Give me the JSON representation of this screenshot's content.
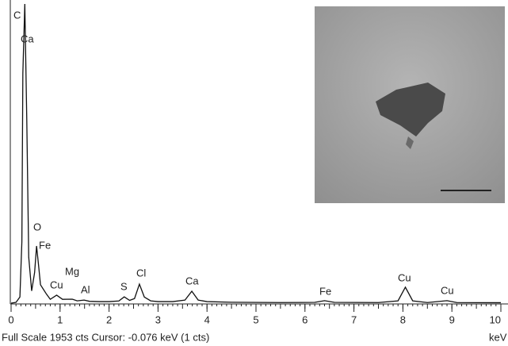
{
  "chart_data": {
    "type": "line",
    "x": [
      0,
      0.1,
      0.18,
      0.22,
      0.24,
      0.28,
      0.32,
      0.36,
      0.42,
      0.48,
      0.52,
      0.56,
      0.6,
      0.66,
      0.72,
      0.8,
      0.93,
      1.05,
      1.25,
      1.35,
      1.49,
      1.6,
      1.8,
      2.0,
      2.2,
      2.31,
      2.42,
      2.52,
      2.62,
      2.72,
      2.85,
      3.0,
      3.3,
      3.55,
      3.69,
      3.82,
      4.0,
      4.5,
      5.5,
      6.2,
      6.4,
      6.6,
      7.5,
      7.9,
      8.05,
      8.2,
      8.5,
      8.9,
      9.1,
      10
    ],
    "series": [
      {
        "color": "#111111",
        "values": [
          0,
          5,
          40,
          400,
          1500,
          1953,
          1200,
          300,
          80,
          200,
          373,
          250,
          120,
          90,
          60,
          25,
          52,
          25,
          26,
          15,
          20,
          12,
          10,
          10,
          14,
          41,
          18,
          30,
          124,
          40,
          15,
          10,
          10,
          20,
          78,
          20,
          10,
          6,
          4,
          5,
          16,
          5,
          4,
          15,
          104,
          15,
          4,
          16,
          4,
          3
        ]
      }
    ],
    "xlim": [
      0,
      10
    ],
    "ylim": [
      0,
      1953
    ],
    "xticks": [
      0,
      1,
      2,
      3,
      4,
      5,
      6,
      7,
      8,
      9,
      10
    ],
    "xlabel": "keV",
    "peak_labels": [
      "C",
      "Ca",
      "O",
      "Fe",
      "Cu",
      "Mg",
      "Al",
      "S",
      "Cl",
      "Ca",
      "Fe",
      "Cu",
      "Cu"
    ],
    "status": "Full Scale 1953 cts  Cursor: -0.076 keV (1 cts)"
  }
}
